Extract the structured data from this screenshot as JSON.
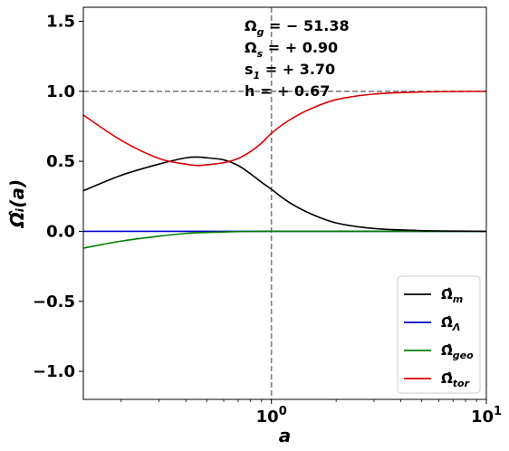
{
  "chart_data": {
    "type": "line",
    "xscale": "log",
    "xlim": [
      0.1333,
      10
    ],
    "ylim": [
      -1.2,
      1.6
    ],
    "xlabel": "a",
    "ylabel": "Ω̂ᵢ(a)",
    "xtick_labels": [
      {
        "value": 1,
        "base": "10",
        "exp": "0"
      },
      {
        "value": 10,
        "base": "10",
        "exp": "1"
      }
    ],
    "yticks": [
      -1.0,
      -0.5,
      0.0,
      0.5,
      1.0,
      1.5
    ],
    "ytick_labels": [
      "−1.0",
      "−0.5",
      "0.0",
      "0.5",
      "1.0",
      "1.5"
    ],
    "reference_lines": {
      "horizontal": 1.0,
      "vertical": 1.0
    },
    "annotations": [
      {
        "name": "Ω",
        "sub": "g",
        "value": " = − 51.38"
      },
      {
        "name": "Ω",
        "sub": "s",
        "value": " = + 0.90"
      },
      {
        "name": "s",
        "sub": "1",
        "value": " = + 3.70"
      },
      {
        "name": "h",
        "sub": "",
        "value": "  = + 0.67"
      }
    ],
    "legend_position": "lower-right",
    "series": [
      {
        "name": "Ω̂",
        "sub": "m",
        "color": "#000000",
        "x": [
          0.1333,
          0.2,
          0.3,
          0.4,
          0.45,
          0.5,
          0.6,
          0.7,
          0.8,
          0.9,
          1.0,
          1.2,
          1.5,
          2.0,
          3.0,
          5.0,
          10.0
        ],
        "y": [
          0.29,
          0.4,
          0.48,
          0.525,
          0.53,
          0.525,
          0.51,
          0.47,
          0.41,
          0.35,
          0.3,
          0.21,
          0.13,
          0.06,
          0.02,
          0.005,
          0.0
        ]
      },
      {
        "name": "Ω̂",
        "sub": "Λ",
        "color": "#0000cc",
        "x": [
          0.1333,
          0.5,
          1.0,
          3.0,
          10.0
        ],
        "y": [
          0.0,
          0.0,
          0.0,
          0.0,
          0.0
        ]
      },
      {
        "name": "Ω̂",
        "sub": "geo",
        "color": "#008000",
        "x": [
          0.1333,
          0.2,
          0.3,
          0.4,
          0.5,
          0.7,
          1.0,
          2.0,
          10.0
        ],
        "y": [
          -0.12,
          -0.07,
          -0.035,
          -0.015,
          -0.008,
          -0.002,
          0.0,
          0.0,
          0.0
        ]
      },
      {
        "name": "Ω̂",
        "sub": "tor",
        "color": "#dd0000",
        "x": [
          0.1333,
          0.2,
          0.3,
          0.4,
          0.45,
          0.5,
          0.6,
          0.7,
          0.8,
          0.9,
          1.0,
          1.2,
          1.5,
          2.0,
          3.0,
          5.0,
          10.0
        ],
        "y": [
          0.83,
          0.65,
          0.52,
          0.48,
          0.47,
          0.475,
          0.49,
          0.52,
          0.57,
          0.63,
          0.7,
          0.79,
          0.87,
          0.94,
          0.98,
          0.995,
          1.0
        ]
      }
    ]
  }
}
